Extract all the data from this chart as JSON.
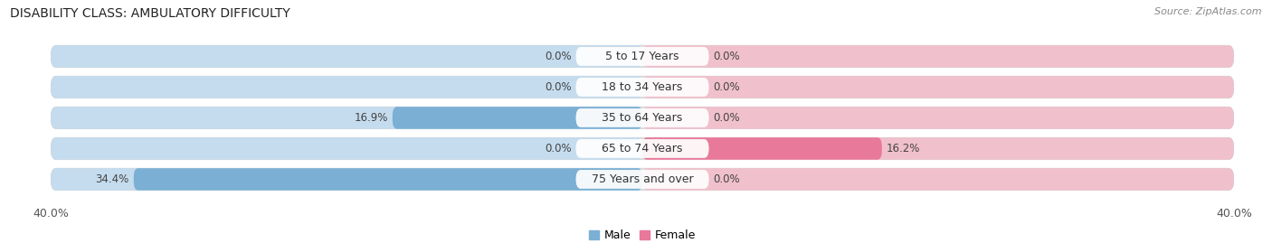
{
  "title": "DISABILITY CLASS: AMBULATORY DIFFICULTY",
  "source": "Source: ZipAtlas.com",
  "categories": [
    "5 to 17 Years",
    "18 to 34 Years",
    "35 to 64 Years",
    "65 to 74 Years",
    "75 Years and over"
  ],
  "male_values": [
    0.0,
    0.0,
    16.9,
    0.0,
    34.4
  ],
  "female_values": [
    0.0,
    0.0,
    0.0,
    16.2,
    0.0
  ],
  "max_val": 40.0,
  "male_color": "#7bafd4",
  "female_color": "#e8799a",
  "male_bg_color": "#c5dcee",
  "female_bg_color": "#f0c0cc",
  "male_label": "Male",
  "female_label": "Female",
  "row_bg_color": "#e4e4e4",
  "row_bg_color2": "#d0d0d0",
  "title_fontsize": 10,
  "label_fontsize": 9,
  "tick_fontsize": 9,
  "source_fontsize": 8
}
